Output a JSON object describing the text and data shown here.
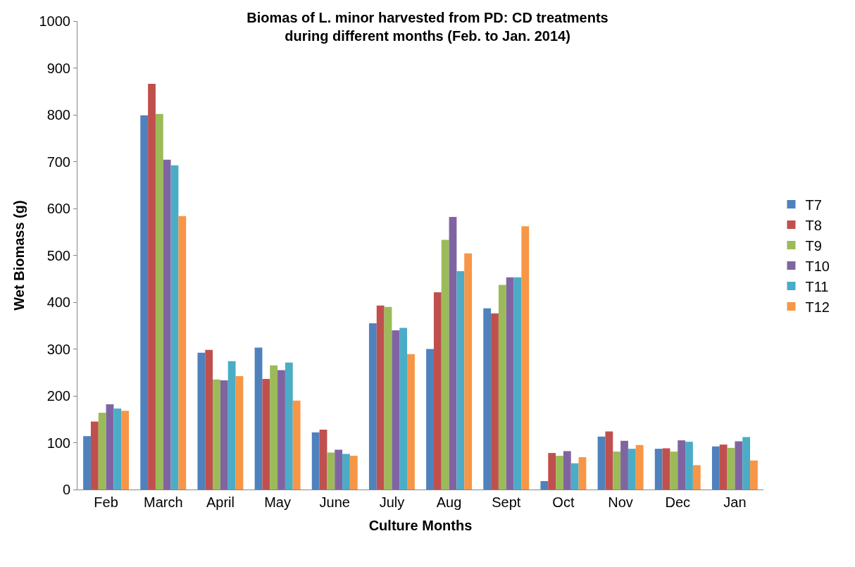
{
  "chart_data": {
    "type": "bar",
    "title": "Biomas of L. minor harvested from PD: CD treatments during different months (Feb. to Jan. 2014)",
    "xlabel": "Culture Months",
    "ylabel": "Wet Biomass (g)",
    "categories": [
      "Feb",
      "March",
      "April",
      "May",
      "June",
      "July",
      "Aug",
      "Sept",
      "Oct",
      "Nov",
      "Dec",
      "Jan"
    ],
    "series": [
      {
        "name": "T7",
        "color": "#4f81bd",
        "values": [
          114,
          799,
          292,
          303,
          122,
          355,
          300,
          387,
          18,
          113,
          87,
          92
        ]
      },
      {
        "name": "T8",
        "color": "#c0504d",
        "values": [
          145,
          866,
          298,
          236,
          128,
          393,
          421,
          376,
          78,
          124,
          88,
          96
        ]
      },
      {
        "name": "T9",
        "color": "#9bbb59",
        "values": [
          164,
          802,
          235,
          265,
          79,
          390,
          533,
          437,
          72,
          81,
          81,
          89
        ]
      },
      {
        "name": "T10",
        "color": "#8064a2",
        "values": [
          182,
          704,
          233,
          255,
          85,
          340,
          582,
          453,
          82,
          104,
          105,
          103
        ]
      },
      {
        "name": "T11",
        "color": "#4bacc6",
        "values": [
          173,
          692,
          274,
          271,
          76,
          345,
          466,
          453,
          56,
          87,
          102,
          112
        ]
      },
      {
        "name": "T12",
        "color": "#f79646",
        "values": [
          168,
          584,
          242,
          190,
          72,
          289,
          504,
          562,
          69,
          95,
          52,
          62
        ]
      }
    ],
    "ylim": [
      0,
      1000
    ],
    "yticks": [
      0,
      100,
      200,
      300,
      400,
      500,
      600,
      700,
      800,
      900,
      1000
    ],
    "grid": false,
    "legend": "right"
  }
}
